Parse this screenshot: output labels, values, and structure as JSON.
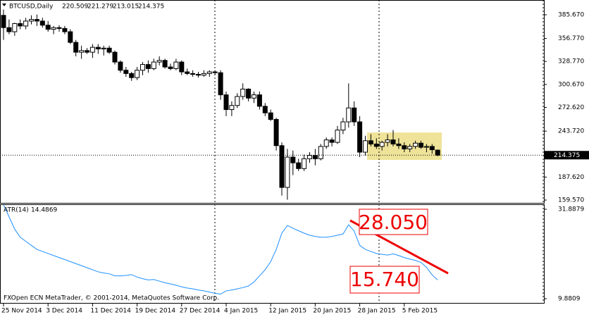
{
  "chart_data": [
    {
      "type": "candlestick",
      "title": "BTCUSD,Daily",
      "categories": [
        "25 Nov 2014",
        null,
        null,
        null,
        null,
        null,
        null,
        null,
        "3 Dec 2014",
        null,
        null,
        null,
        null,
        null,
        null,
        null,
        "11 Dec 2014",
        null,
        null,
        null,
        null,
        null,
        null,
        null,
        "19 Dec 2014",
        null,
        null,
        null,
        null,
        null,
        null,
        null,
        "27 Dec 2014",
        null,
        null,
        null,
        null,
        null,
        null,
        null,
        "4 Jan 2015",
        null,
        null,
        null,
        null,
        null,
        null,
        null,
        "12 Jan 2015",
        null,
        null,
        null,
        null,
        null,
        null,
        null,
        "20 Jan 2015",
        null,
        null,
        null,
        null,
        null,
        null,
        null,
        "28 Jan 2015",
        null,
        null,
        null,
        null,
        null,
        null,
        null,
        "5 Feb 2015",
        null,
        null,
        null,
        null,
        null,
        null
      ],
      "open": [
        385,
        370,
        365,
        375,
        372,
        378,
        380,
        378,
        373,
        368,
        370,
        369,
        365,
        352,
        340,
        342,
        340,
        346,
        344,
        345,
        340,
        328,
        318,
        314,
        309,
        318,
        325,
        320,
        328,
        330,
        322,
        320,
        328,
        316,
        314,
        313,
        312,
        314,
        316,
        315,
        288,
        270,
        275,
        286,
        295,
        284,
        288,
        274,
        266,
        258,
        226,
        175,
        212,
        205,
        198,
        210,
        214,
        210,
        225,
        233,
        230,
        245,
        255,
        272,
        255,
        218,
        232,
        228,
        225,
        230,
        233,
        228,
        226,
        222,
        225,
        229,
        224,
        225,
        220.509
      ],
      "high": [
        392,
        380,
        376,
        380,
        382,
        385,
        386,
        382,
        378,
        372,
        373,
        372,
        368,
        355,
        348,
        345,
        350,
        350,
        348,
        348,
        342,
        330,
        322,
        316,
        322,
        328,
        330,
        332,
        335,
        332,
        326,
        332,
        330,
        320,
        318,
        316,
        318,
        318,
        318,
        318,
        292,
        280,
        290,
        302,
        296,
        292,
        292,
        278,
        270,
        260,
        230,
        222,
        220,
        210,
        215,
        218,
        222,
        228,
        236,
        236,
        250,
        260,
        302,
        280,
        262,
        238,
        240,
        235,
        232,
        240,
        245,
        235,
        230,
        228,
        232,
        232,
        228,
        228,
        221.279
      ],
      "low": [
        355,
        362,
        360,
        368,
        368,
        374,
        372,
        370,
        365,
        362,
        365,
        362,
        350,
        335,
        332,
        338,
        333,
        338,
        336,
        338,
        325,
        315,
        310,
        305,
        306,
        312,
        315,
        318,
        324,
        320,
        318,
        318,
        312,
        312,
        310,
        309,
        310,
        310,
        312,
        282,
        262,
        262,
        272,
        282,
        280,
        278,
        270,
        262,
        256,
        220,
        165,
        160,
        190,
        195,
        195,
        205,
        202,
        208,
        222,
        225,
        228,
        240,
        248,
        250,
        212,
        214,
        225,
        222,
        220,
        225,
        225,
        222,
        218,
        218,
        222,
        222,
        218,
        216,
        213.015
      ],
      "close": [
        370,
        365,
        375,
        372,
        378,
        380,
        378,
        373,
        368,
        370,
        369,
        365,
        352,
        340,
        342,
        340,
        346,
        344,
        345,
        340,
        328,
        318,
        314,
        309,
        318,
        325,
        320,
        328,
        330,
        322,
        320,
        328,
        316,
        314,
        313,
        312,
        314,
        316,
        315,
        288,
        270,
        275,
        286,
        295,
        284,
        288,
        274,
        266,
        258,
        226,
        175,
        212,
        205,
        198,
        210,
        214,
        210,
        225,
        233,
        230,
        245,
        255,
        272,
        255,
        218,
        232,
        228,
        225,
        230,
        233,
        228,
        226,
        222,
        225,
        229,
        224,
        225,
        221,
        214.375
      ],
      "ylim": [
        159.57,
        385.67
      ],
      "yticks": [
        {
          "value": 385.67,
          "label": "385.670"
        },
        {
          "value": 356.77,
          "label": "356.770"
        },
        {
          "value": 328.77,
          "label": "328.770"
        },
        {
          "value": 300.67,
          "label": "300.670"
        },
        {
          "value": 272.62,
          "label": "272.620"
        },
        {
          "value": 243.72,
          "label": "243.720"
        },
        {
          "value": 187.62,
          "label": "187.620"
        },
        {
          "value": 159.57,
          "label": "159.570"
        }
      ]
    },
    {
      "type": "line",
      "title": "ATR(14)",
      "color": "#1e90ff",
      "values": [
        33,
        30,
        27,
        25,
        24,
        23,
        22,
        21.5,
        21,
        20.5,
        20,
        19.5,
        19,
        18.5,
        18,
        17.5,
        17,
        16.5,
        16.2,
        16,
        15.5,
        15.5,
        15.6,
        15.8,
        15.2,
        14.8,
        14.5,
        14.6,
        14.2,
        13.8,
        13.5,
        13.2,
        12.8,
        12.5,
        12.3,
        12.0,
        11.8,
        11.5,
        11.2,
        11.0,
        11.8,
        12.0,
        12.3,
        12.6,
        13.0,
        14.0,
        15.5,
        17,
        19,
        22,
        26,
        27.9,
        27.2,
        26.6,
        26.0,
        25.5,
        25.2,
        25.0,
        25.0,
        25.2,
        25.5,
        25.8,
        28.05,
        26.5,
        23.0,
        22.0,
        21.5,
        21.0,
        20.8,
        20.6,
        20.9,
        20.5,
        20.0,
        19.6,
        19.3,
        18.8,
        17.6,
        15.74,
        14.4869
      ],
      "ylim": [
        9.8809,
        31.8879
      ],
      "yticks": [
        9.8809,
        31.8879
      ],
      "annotations": [
        "28.050",
        "15.740"
      ],
      "footer": "FXOpen ECN MetaTrader, © 2001-2014, MetaQuotes Software Corp."
    }
  ]
}
